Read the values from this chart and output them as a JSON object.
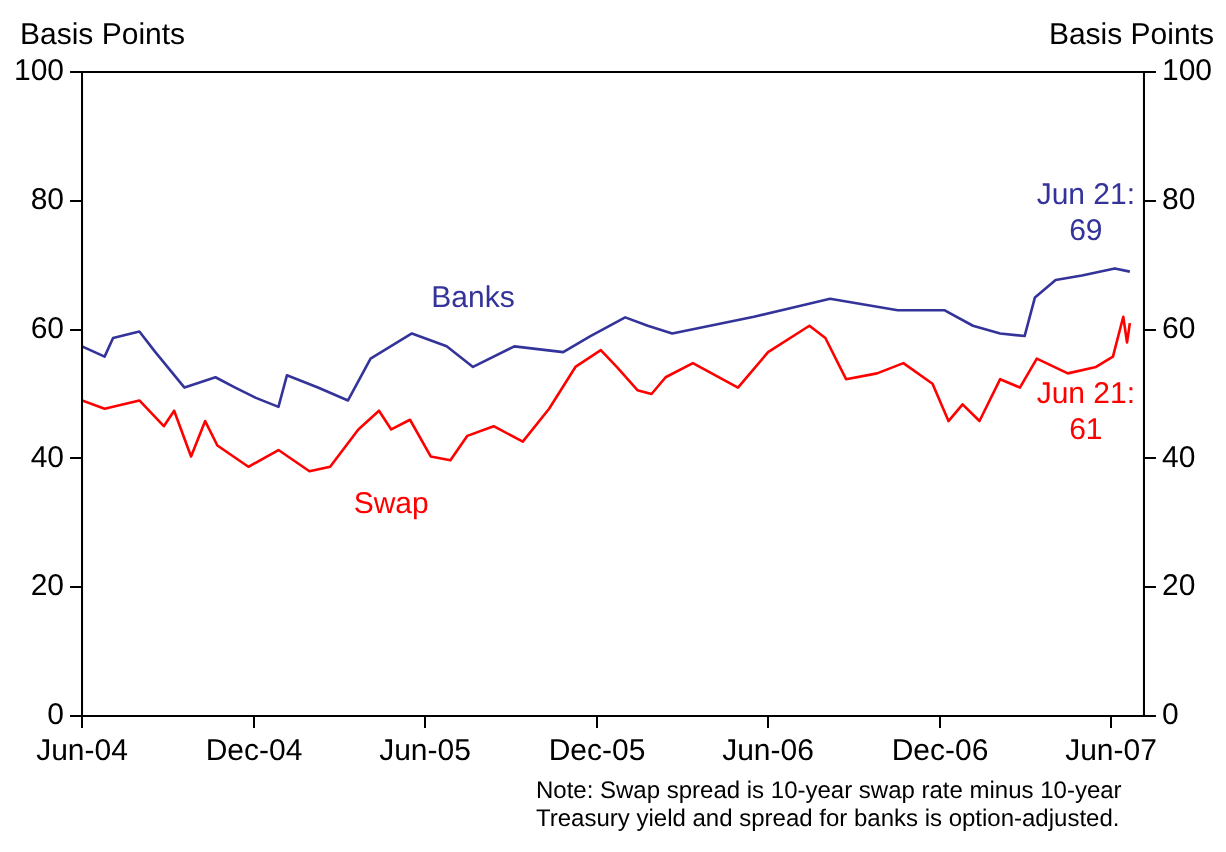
{
  "chart_data": {
    "type": "line",
    "ylabel": "Basis Points",
    "y2label": "Basis Points",
    "xlim": [
      "2004-06-01",
      "2007-07-06"
    ],
    "xticks": [
      {
        "value": "2004-06-01",
        "label": "Jun-04"
      },
      {
        "value": "2004-12-01",
        "label": "Dec-04"
      },
      {
        "value": "2005-06-01",
        "label": "Jun-05"
      },
      {
        "value": "2005-12-01",
        "label": "Dec-05"
      },
      {
        "value": "2006-06-01",
        "label": "Jun-06"
      },
      {
        "value": "2006-12-01",
        "label": "Dec-06"
      },
      {
        "value": "2007-06-01",
        "label": "Jun-07"
      }
    ],
    "ylim": [
      0,
      100
    ],
    "yticks": [
      0,
      20,
      40,
      60,
      80,
      100
    ],
    "y2lim": [
      0,
      100
    ],
    "y2ticks": [
      0,
      20,
      40,
      60,
      80,
      100
    ],
    "grid": false,
    "legend": false,
    "marker": "none",
    "line_style": "solid",
    "series": [
      {
        "name": "Banks",
        "color": "#333399",
        "x": [
          "2004-06-01",
          "2004-06-25",
          "2004-07-04",
          "2004-08-01",
          "2004-08-18",
          "2004-09-18",
          "2004-10-21",
          "2004-11-11",
          "2004-12-03",
          "2004-12-27",
          "2005-01-05",
          "2005-02-07",
          "2005-03-11",
          "2005-04-04",
          "2005-05-18",
          "2005-06-24",
          "2005-07-22",
          "2005-09-04",
          "2005-10-26",
          "2005-11-24",
          "2005-12-31",
          "2006-01-24",
          "2006-02-19",
          "2006-05-17",
          "2006-06-30",
          "2006-08-06",
          "2006-10-17",
          "2006-12-06",
          "2007-01-05",
          "2007-02-03",
          "2007-03-01",
          "2007-03-12",
          "2007-04-03",
          "2007-05-01",
          "2007-06-05",
          "2007-06-21"
        ],
        "values": [
          57.4,
          55.8,
          58.7,
          59.7,
          56.5,
          51,
          52.6,
          51,
          49.4,
          48,
          52.9,
          51,
          49,
          55.5,
          59.4,
          57.4,
          54.2,
          57.4,
          56.5,
          59,
          61.9,
          60.6,
          59.4,
          62,
          63.5,
          64.8,
          63,
          63,
          60.6,
          59.4,
          59,
          65,
          67.7,
          68.4,
          69.5,
          69
        ]
      },
      {
        "name": "Swap",
        "color": "#ff0000",
        "x": [
          "2004-06-01",
          "2004-06-25",
          "2004-08-01",
          "2004-08-27",
          "2004-09-07",
          "2004-09-25",
          "2004-10-10",
          "2004-10-23",
          "2004-11-25",
          "2004-12-27",
          "2005-01-29",
          "2005-02-20",
          "2005-03-22",
          "2005-04-13",
          "2005-04-26",
          "2005-05-16",
          "2005-06-07",
          "2005-06-28",
          "2005-07-16",
          "2005-08-13",
          "2005-09-13",
          "2005-10-11",
          "2005-11-08",
          "2005-12-05",
          "2005-12-22",
          "2006-01-13",
          "2006-01-28",
          "2006-02-12",
          "2006-03-13",
          "2006-04-30",
          "2006-06-01",
          "2006-07-15",
          "2006-08-01",
          "2006-08-23",
          "2006-09-25",
          "2006-10-23",
          "2006-11-23",
          "2006-12-10",
          "2006-12-25",
          "2007-01-12",
          "2007-02-03",
          "2007-02-24",
          "2007-03-14",
          "2007-04-16",
          "2007-05-16",
          "2007-06-03",
          "2007-06-14",
          "2007-06-18",
          "2007-06-21"
        ],
        "values": [
          49,
          47.7,
          49,
          45,
          47.4,
          40.3,
          45.8,
          42,
          38.7,
          41.3,
          38,
          38.7,
          44.5,
          47.4,
          44.5,
          46,
          40.3,
          39.7,
          43.5,
          45,
          42.6,
          47.7,
          54.2,
          56.8,
          54.2,
          50.6,
          50,
          52.6,
          54.8,
          51,
          56.5,
          60.6,
          58.7,
          52.3,
          53.2,
          54.8,
          51.6,
          45.8,
          48.4,
          45.8,
          52.3,
          51,
          55.5,
          53.2,
          54.2,
          55.8,
          62,
          58,
          61
        ]
      }
    ],
    "annotations": [
      {
        "text": "Jun 21:\n69",
        "x": "2007-06-21",
        "y": 69
      },
      {
        "text": "Jun 21:\n61",
        "x": "2007-06-21",
        "y": 61
      },
      "Note: Swap spread is 10-year swap rate minus 10-year Treasury yield and spread for banks is option-adjusted."
    ]
  }
}
